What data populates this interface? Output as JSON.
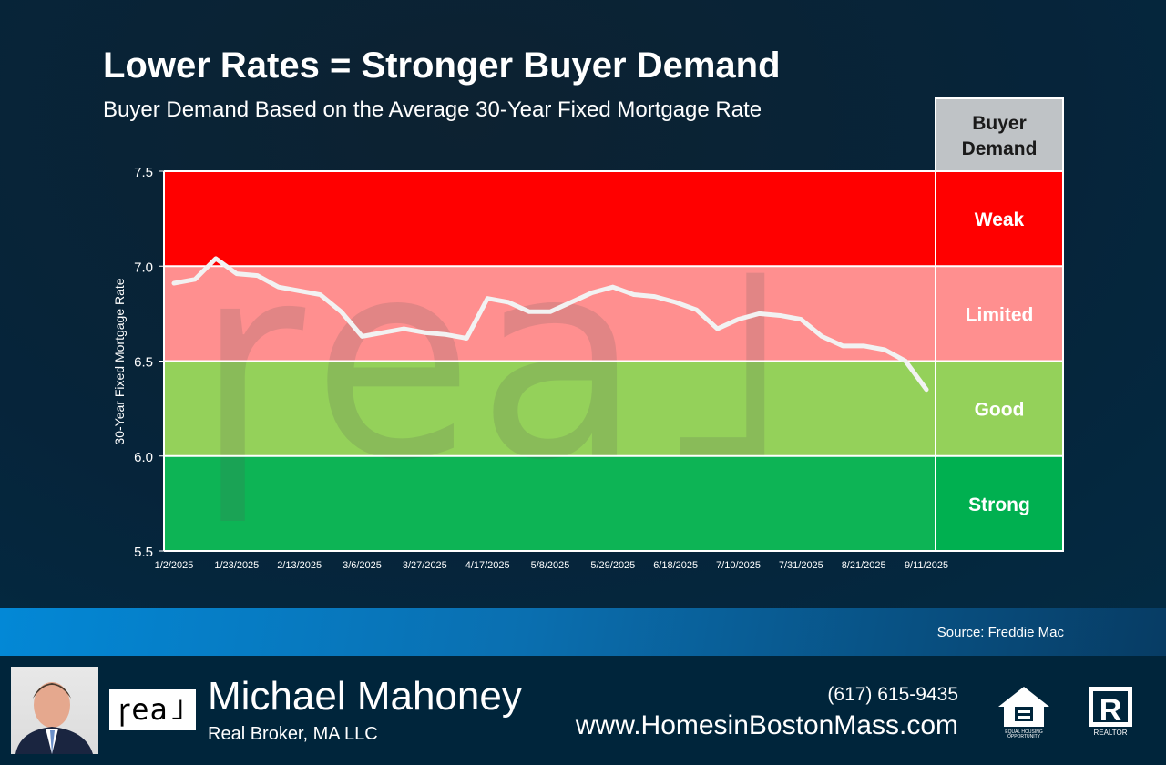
{
  "header": {
    "title": "Lower Rates = Stronger Buyer Demand",
    "subtitle": "Buyer Demand Based on the Average 30-Year Fixed Mortgage Rate"
  },
  "chart_data": {
    "type": "line",
    "ylabel": "30-Year Fixed Mortgage Rate",
    "ylim": [
      5.5,
      7.5
    ],
    "yticks": [
      "5.5",
      "6.0",
      "6.5",
      "7.0",
      "7.5"
    ],
    "xtick_labels": [
      "1/2/2025",
      "1/23/2025",
      "2/13/2025",
      "3/6/2025",
      "3/27/2025",
      "4/17/2025",
      "5/8/2025",
      "5/29/2025",
      "6/18/2025",
      "7/10/2025",
      "7/31/2025",
      "8/21/2025",
      "9/11/2025"
    ],
    "values": [
      6.91,
      6.93,
      7.04,
      6.96,
      6.95,
      6.89,
      6.87,
      6.85,
      6.76,
      6.63,
      6.65,
      6.67,
      6.65,
      6.64,
      6.62,
      6.83,
      6.81,
      6.76,
      6.76,
      6.81,
      6.86,
      6.89,
      6.85,
      6.84,
      6.81,
      6.77,
      6.67,
      6.72,
      6.75,
      6.74,
      6.72,
      6.63,
      6.58,
      6.58,
      6.56,
      6.5,
      6.35
    ],
    "legend_header": "Buyer Demand",
    "zones": [
      {
        "label": "Weak",
        "from": 7.0,
        "to": 7.5,
        "color": "#ff0000",
        "legend_color": "#ff0000"
      },
      {
        "label": "Limited",
        "from": 6.5,
        "to": 7.0,
        "color": "#ff8f8f",
        "legend_color": "#ff8f8f"
      },
      {
        "label": "Good",
        "from": 6.0,
        "to": 6.5,
        "color": "#94d15a",
        "legend_color": "#94d15a"
      },
      {
        "label": "Strong",
        "from": 5.5,
        "to": 6.0,
        "color": "#0db455",
        "legend_color": "#00b050"
      }
    ]
  },
  "source": "Source: Freddie Mac",
  "footer": {
    "name": "Michael Mahoney",
    "company": "Real Broker, MA LLC",
    "phone": "(617) 615-9435",
    "website": "www.HomesinBostonMass.com",
    "logo_text": "real",
    "eho_text": "EQUAL HOUSING OPPORTUNITY",
    "realtor_text": "REALTOR"
  }
}
